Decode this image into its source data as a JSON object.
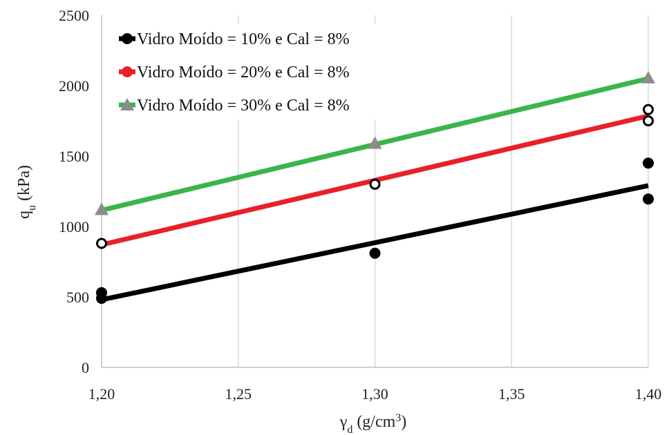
{
  "chart_data": {
    "type": "scatter",
    "title": "",
    "xlabel": {
      "main": "γ",
      "sub": "d",
      "rest": " (g/cm",
      "sup": "3",
      "end": ")"
    },
    "ylabel": {
      "main": "q",
      "sub": "u",
      "rest": " (kPa)"
    },
    "xlim": [
      1.2,
      1.4
    ],
    "ylim": [
      0,
      2500
    ],
    "x_ticks": [
      {
        "value": 1.2,
        "label": "1,20"
      },
      {
        "value": 1.25,
        "label": "1,25"
      },
      {
        "value": 1.3,
        "label": "1,30"
      },
      {
        "value": 1.35,
        "label": "1,35"
      },
      {
        "value": 1.4,
        "label": "1,40"
      }
    ],
    "y_ticks": [
      {
        "value": 0,
        "label": "0"
      },
      {
        "value": 500,
        "label": "500"
      },
      {
        "value": 1000,
        "label": "1000"
      },
      {
        "value": 1500,
        "label": "1500"
      },
      {
        "value": 2000,
        "label": "2000"
      },
      {
        "value": 2500,
        "label": "2500"
      }
    ],
    "grid": {
      "vertical": true,
      "horizontal": false
    },
    "legend_position": "top-left",
    "series": [
      {
        "name": "Vidro Moído = 10% e Cal = 8%",
        "color": "#000000",
        "marker": "filled-circle",
        "points": [
          {
            "x": 1.2,
            "y": 530
          },
          {
            "x": 1.2,
            "y": 490
          },
          {
            "x": 1.3,
            "y": 810
          },
          {
            "x": 1.4,
            "y": 1450
          },
          {
            "x": 1.4,
            "y": 1195
          }
        ],
        "trend": {
          "x": [
            1.2,
            1.4
          ],
          "y": [
            480,
            1290
          ]
        }
      },
      {
        "name": "Vidro Moído = 20% e Cal = 8%",
        "color": "#e8202a",
        "marker": "open-circle",
        "points": [
          {
            "x": 1.2,
            "y": 880
          },
          {
            "x": 1.3,
            "y": 1300
          },
          {
            "x": 1.4,
            "y": 1830
          },
          {
            "x": 1.4,
            "y": 1750
          }
        ],
        "trend": {
          "x": [
            1.2,
            1.4
          ],
          "y": [
            870,
            1785
          ]
        }
      },
      {
        "name": "Vidro Moído = 30% e Cal = 8%",
        "color": "#3bb54a",
        "marker": "triangle",
        "points": [
          {
            "x": 1.2,
            "y": 1120
          },
          {
            "x": 1.3,
            "y": 1590
          },
          {
            "x": 1.4,
            "y": 2055
          }
        ],
        "trend": {
          "x": [
            1.2,
            1.4
          ],
          "y": [
            1115,
            2050
          ]
        }
      }
    ]
  }
}
